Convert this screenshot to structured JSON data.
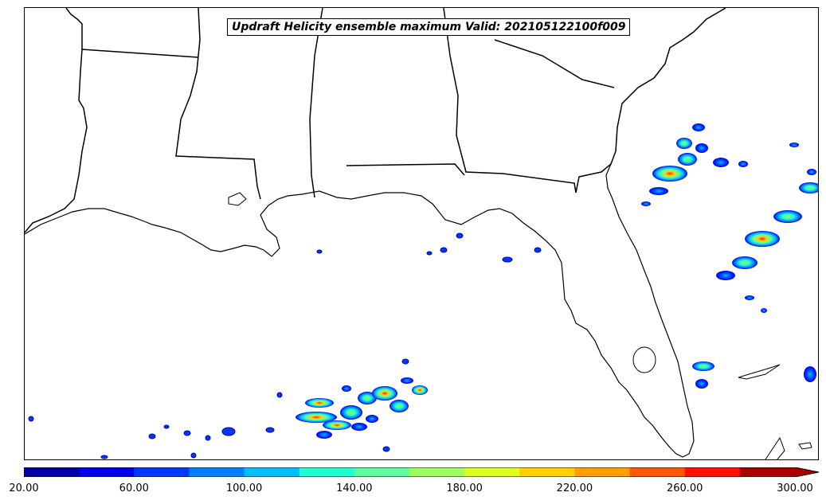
{
  "title": "Updraft Helicity ensemble maximum Valid: 202105122100f009",
  "colorbar": {
    "colors": [
      "#0000a8",
      "#0000f0",
      "#0038ff",
      "#0080ff",
      "#00c0ff",
      "#20ffd0",
      "#60ffa0",
      "#a0ff60",
      "#e0ff20",
      "#ffd000",
      "#ffa000",
      "#ff5800",
      "#ff1000",
      "#a80000"
    ],
    "tick_labels": [
      "20.00",
      "60.00",
      "100.00",
      "140.00",
      "180.00",
      "220.00",
      "260.00",
      "300.00"
    ],
    "extend": "max"
  },
  "map": {
    "land_color": "#ffffff",
    "water_color": "#ffffff",
    "boundary_color": "#000000",
    "field": "Updraft Helicity ensemble maximum"
  }
}
